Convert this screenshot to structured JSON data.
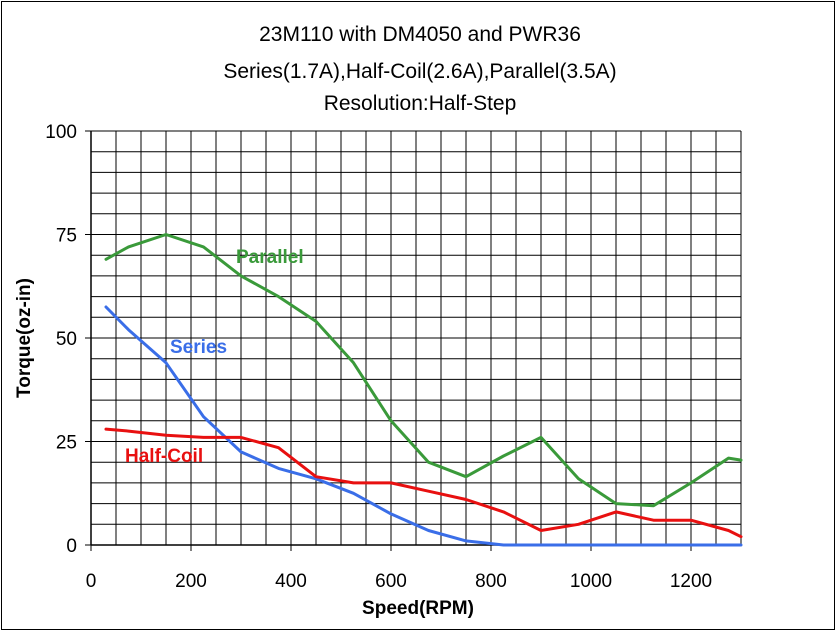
{
  "chart_data": {
    "type": "line",
    "title": [
      "23M110 with DM4050 and PWR36",
      "Series(1.7A),Half-Coil(2.6A),Parallel(3.5A)",
      "Resolution:Half-Step"
    ],
    "xlabel": "Speed(RPM)",
    "ylabel": "Torque(oz-in)",
    "xlim": [
      0,
      1300
    ],
    "ylim": [
      0,
      100
    ],
    "xticks": [
      0,
      200,
      400,
      600,
      800,
      1000,
      1200
    ],
    "yticks": [
      0,
      25,
      50,
      75,
      100
    ],
    "grid": true,
    "legend": "inline labels",
    "series": [
      {
        "name": "Parallel",
        "color": "#3a9a3a",
        "x": [
          30,
          75,
          150,
          225,
          300,
          375,
          450,
          525,
          600,
          675,
          750,
          825,
          900,
          975,
          1050,
          1125,
          1200,
          1275,
          1300
        ],
        "y": [
          69,
          72,
          75,
          72,
          65,
          60,
          54,
          44,
          30,
          20,
          16.5,
          21.5,
          26,
          16,
          10,
          9.5,
          15,
          21,
          20.5
        ]
      },
      {
        "name": "Series",
        "color": "#3a6ee8",
        "x": [
          30,
          75,
          150,
          225,
          300,
          375,
          450,
          525,
          600,
          675,
          750,
          825,
          900,
          975,
          1050,
          1125,
          1200,
          1275,
          1300
        ],
        "y": [
          57.5,
          52,
          44,
          31,
          22.5,
          18.5,
          16,
          12.5,
          7.5,
          3.5,
          1,
          0,
          0,
          0,
          0,
          0,
          0,
          0,
          0
        ]
      },
      {
        "name": "Half-Coil",
        "color": "#e81010",
        "x": [
          30,
          75,
          150,
          225,
          300,
          375,
          450,
          525,
          600,
          675,
          750,
          825,
          900,
          975,
          1050,
          1125,
          1200,
          1275,
          1300
        ],
        "y": [
          28,
          27.5,
          26.5,
          26,
          26,
          23.5,
          16.5,
          15,
          15,
          13,
          11,
          8,
          3.5,
          5,
          8,
          6,
          6,
          3.5,
          2
        ]
      }
    ],
    "annotations": [
      "Parallel",
      "Series",
      "Half-Coil"
    ]
  }
}
